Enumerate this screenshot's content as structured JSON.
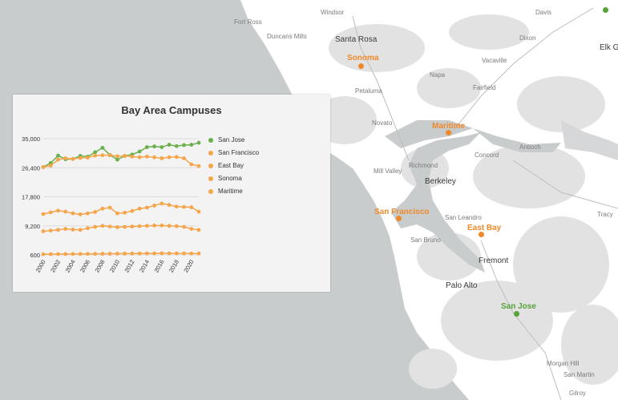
{
  "map": {
    "cities": [
      "Windsor",
      "Fort Ross",
      "Duncans Mills",
      "Petaluma",
      "Novato",
      "Vacaville",
      "Dixon",
      "Napa",
      "Fairfield",
      "Davis",
      "Antioch",
      "Concord",
      "Mill Valley",
      "Richmond",
      "San Leandro",
      "San Bruno",
      "Morgan Hill",
      "San Martin",
      "Tracy",
      "Gilroy"
    ],
    "major_cities": [
      "Santa Rosa",
      "Berkeley",
      "Fremont",
      "Palo Alto",
      "Elk G"
    ],
    "campuses": [
      "Sonoma",
      "Maritime",
      "San Francisco",
      "East Bay",
      "San Jose"
    ],
    "colors": {
      "campus_orange": "#f0892a",
      "campus_green": "#58a23a",
      "water": "#c9cccd",
      "land": "#ffffff"
    }
  },
  "chart_data": {
    "type": "line",
    "title": "Bay Area Campuses",
    "x": [
      2000,
      2001,
      2002,
      2003,
      2004,
      2005,
      2006,
      2007,
      2008,
      2009,
      2010,
      2011,
      2012,
      2013,
      2014,
      2015,
      2016,
      2017,
      2018,
      2019,
      2020,
      2021
    ],
    "x_tick_labels": [
      "2000",
      "2002",
      "2004",
      "2006",
      "2008",
      "2010",
      "2012",
      "2014",
      "2016",
      "2018",
      "2020"
    ],
    "y_tick_labels": [
      "35,000",
      "26,400",
      "17,800",
      "9,200",
      "600"
    ],
    "ylim": [
      600,
      35000
    ],
    "grid": true,
    "legend_position": "right",
    "series": [
      {
        "name": "San Jose",
        "color": "#6ab04c",
        "values": [
          26600,
          27800,
          30000,
          28900,
          29000,
          29900,
          29700,
          31000,
          32300,
          30200,
          28800,
          29900,
          30300,
          31200,
          32500,
          32700,
          32500,
          33200,
          32800,
          33100,
          33200,
          33800
        ]
      },
      {
        "name": "San Francisco",
        "color": "#f5a54a",
        "values": [
          26600,
          27000,
          28800,
          29200,
          29000,
          29300,
          29400,
          30000,
          30100,
          30100,
          29800,
          29900,
          29700,
          29500,
          29700,
          29500,
          29200,
          29500,
          29600,
          29200,
          27400,
          26900
        ]
      },
      {
        "name": "East Bay",
        "color": "#f5a54a",
        "values": [
          12700,
          13200,
          13700,
          13400,
          12900,
          12600,
          12900,
          13300,
          14300,
          14600,
          12900,
          13100,
          13600,
          14300,
          14600,
          15200,
          15800,
          15400,
          14900,
          14800,
          14700,
          13400
        ]
      },
      {
        "name": "Sonoma",
        "color": "#f5a54a",
        "values": [
          7600,
          7800,
          8000,
          8300,
          8100,
          8000,
          8500,
          8900,
          9200,
          9000,
          8800,
          8900,
          9000,
          9100,
          9200,
          9300,
          9300,
          9200,
          9100,
          8900,
          8300,
          8000
        ]
      },
      {
        "name": "Maritime",
        "color": "#f5a54a",
        "values": [
          800,
          820,
          840,
          860,
          870,
          890,
          910,
          920,
          940,
          950,
          960,
          980,
          1000,
          1010,
          1020,
          1040,
          1060,
          1050,
          1040,
          1030,
          1010,
          1000
        ]
      }
    ]
  }
}
